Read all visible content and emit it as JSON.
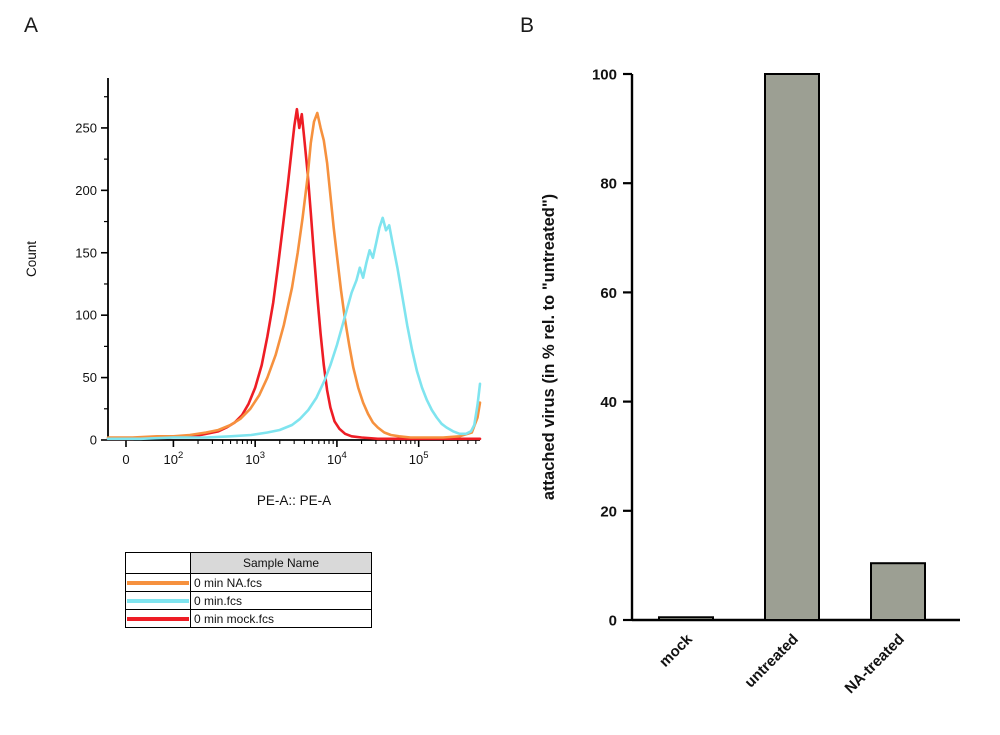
{
  "panels": {
    "a_label": "A",
    "b_label": "B"
  },
  "chart_data": [
    {
      "type": "line",
      "panel": "A",
      "subtype": "flow-cytometry-histogram",
      "xlabel": "PE-A:: PE-A",
      "ylabel": "Count",
      "x_scale": "log10",
      "xlim_log": [
        1.2,
        5.75
      ],
      "ylim": [
        0,
        290
      ],
      "y_ticks": [
        0,
        50,
        100,
        150,
        200,
        250
      ],
      "y_minor_ticks": [
        25,
        75,
        125,
        175,
        225,
        275
      ],
      "x_ticks": [
        {
          "pos": 1.42,
          "label": "0"
        },
        {
          "pos": 2,
          "label": "10",
          "sup": "2"
        },
        {
          "pos": 3,
          "label": "10",
          "sup": "3"
        },
        {
          "pos": 4,
          "label": "10",
          "sup": "4"
        },
        {
          "pos": 5,
          "label": "10",
          "sup": "5"
        }
      ],
      "series": [
        {
          "name": "0 min mock.fcs",
          "color": "#EE1D25",
          "points": [
            [
              1.2,
              1
            ],
            [
              1.5,
              1
            ],
            [
              1.75,
              2
            ],
            [
              1.95,
              2
            ],
            [
              2.1,
              3
            ],
            [
              2.25,
              3
            ],
            [
              2.4,
              5
            ],
            [
              2.55,
              7
            ],
            [
              2.65,
              10
            ],
            [
              2.75,
              14
            ],
            [
              2.84,
              20
            ],
            [
              2.92,
              29
            ],
            [
              3.0,
              42
            ],
            [
              3.08,
              60
            ],
            [
              3.15,
              83
            ],
            [
              3.22,
              110
            ],
            [
              3.28,
              140
            ],
            [
              3.34,
              172
            ],
            [
              3.4,
              205
            ],
            [
              3.45,
              235
            ],
            [
              3.48,
              252
            ],
            [
              3.51,
              265
            ],
            [
              3.54,
              250
            ],
            [
              3.57,
              261
            ],
            [
              3.6,
              242
            ],
            [
              3.64,
              215
            ],
            [
              3.68,
              182
            ],
            [
              3.72,
              148
            ],
            [
              3.76,
              115
            ],
            [
              3.8,
              85
            ],
            [
              3.84,
              60
            ],
            [
              3.88,
              40
            ],
            [
              3.92,
              26
            ],
            [
              3.97,
              15
            ],
            [
              4.03,
              9
            ],
            [
              4.1,
              5
            ],
            [
              4.18,
              3
            ],
            [
              4.3,
              2
            ],
            [
              4.5,
              1
            ],
            [
              4.9,
              1
            ],
            [
              5.3,
              1
            ],
            [
              5.6,
              1
            ],
            [
              5.75,
              1
            ]
          ]
        },
        {
          "name": "0 min NA.fcs",
          "color": "#F6913E",
          "points": [
            [
              1.2,
              2
            ],
            [
              1.5,
              2
            ],
            [
              1.8,
              3
            ],
            [
              2.0,
              3
            ],
            [
              2.2,
              4
            ],
            [
              2.4,
              6
            ],
            [
              2.55,
              8
            ],
            [
              2.7,
              12
            ],
            [
              2.82,
              17
            ],
            [
              2.94,
              25
            ],
            [
              3.05,
              36
            ],
            [
              3.15,
              50
            ],
            [
              3.25,
              68
            ],
            [
              3.35,
              92
            ],
            [
              3.45,
              122
            ],
            [
              3.52,
              150
            ],
            [
              3.58,
              178
            ],
            [
              3.64,
              210
            ],
            [
              3.68,
              238
            ],
            [
              3.72,
              255
            ],
            [
              3.76,
              262
            ],
            [
              3.8,
              250
            ],
            [
              3.84,
              240
            ],
            [
              3.88,
              222
            ],
            [
              3.92,
              196
            ],
            [
              3.96,
              170
            ],
            [
              4.0,
              148
            ],
            [
              4.05,
              120
            ],
            [
              4.1,
              96
            ],
            [
              4.15,
              76
            ],
            [
              4.2,
              58
            ],
            [
              4.26,
              42
            ],
            [
              4.32,
              30
            ],
            [
              4.38,
              21
            ],
            [
              4.44,
              14
            ],
            [
              4.5,
              10
            ],
            [
              4.58,
              6
            ],
            [
              4.66,
              4
            ],
            [
              4.76,
              3
            ],
            [
              4.9,
              2
            ],
            [
              5.1,
              2
            ],
            [
              5.3,
              2
            ],
            [
              5.5,
              3
            ],
            [
              5.65,
              6
            ],
            [
              5.72,
              18
            ],
            [
              5.75,
              30
            ]
          ]
        },
        {
          "name": "0 min.fcs",
          "color": "#7FE4EF",
          "points": [
            [
              1.2,
              1
            ],
            [
              1.6,
              1
            ],
            [
              2.0,
              2
            ],
            [
              2.4,
              2
            ],
            [
              2.7,
              3
            ],
            [
              2.95,
              4
            ],
            [
              3.15,
              6
            ],
            [
              3.3,
              8
            ],
            [
              3.45,
              12
            ],
            [
              3.55,
              17
            ],
            [
              3.65,
              24
            ],
            [
              3.75,
              34
            ],
            [
              3.85,
              48
            ],
            [
              3.92,
              60
            ],
            [
              4.0,
              76
            ],
            [
              4.06,
              90
            ],
            [
              4.12,
              104
            ],
            [
              4.18,
              118
            ],
            [
              4.24,
              128
            ],
            [
              4.28,
              138
            ],
            [
              4.32,
              130
            ],
            [
              4.36,
              142
            ],
            [
              4.4,
              152
            ],
            [
              4.44,
              146
            ],
            [
              4.48,
              158
            ],
            [
              4.52,
              170
            ],
            [
              4.56,
              178
            ],
            [
              4.6,
              168
            ],
            [
              4.64,
              172
            ],
            [
              4.68,
              158
            ],
            [
              4.74,
              138
            ],
            [
              4.8,
              115
            ],
            [
              4.86,
              92
            ],
            [
              4.92,
              72
            ],
            [
              4.98,
              55
            ],
            [
              5.04,
              42
            ],
            [
              5.1,
              32
            ],
            [
              5.16,
              24
            ],
            [
              5.22,
              18
            ],
            [
              5.28,
              13
            ],
            [
              5.34,
              10
            ],
            [
              5.42,
              7
            ],
            [
              5.5,
              5
            ],
            [
              5.58,
              5
            ],
            [
              5.64,
              7
            ],
            [
              5.68,
              12
            ],
            [
              5.72,
              28
            ],
            [
              5.75,
              45
            ]
          ]
        }
      ]
    },
    {
      "type": "bar",
      "panel": "B",
      "categories": [
        "mock",
        "untreated",
        "NA-treated"
      ],
      "values": [
        0.5,
        100,
        10.4
      ],
      "ylabel": "attached virus (in % rel. to \"untreated\")",
      "ylim": [
        0,
        100
      ],
      "y_ticks": [
        0,
        20,
        40,
        60,
        80,
        100
      ],
      "bar_color": "#9C9F93",
      "bar_edge": "#000000"
    }
  ],
  "legend_table": {
    "header": "Sample Name",
    "rows": [
      {
        "sample": "0 min NA.fcs",
        "color": "#F6913E"
      },
      {
        "sample": "0 min.fcs",
        "color": "#7FE4EF"
      },
      {
        "sample": "0 min mock.fcs",
        "color": "#EE1D25"
      }
    ]
  }
}
